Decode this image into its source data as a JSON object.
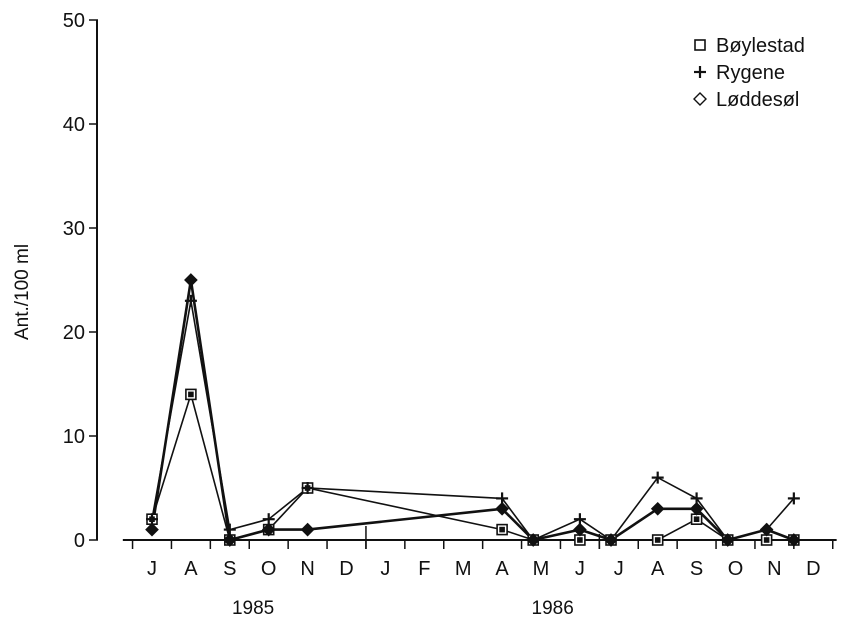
{
  "chart_data": {
    "type": "line",
    "ylabel": "Ant./100 ml",
    "ylim": [
      0,
      50
    ],
    "yticks": [
      "0",
      "10",
      "20",
      "30",
      "40",
      "50"
    ],
    "month_labels": [
      "J",
      "A",
      "S",
      "O",
      "N",
      "D",
      "J",
      "F",
      "M",
      "A",
      "M",
      "J",
      "J",
      "A",
      "S",
      "O",
      "N",
      "D"
    ],
    "year_labels": [
      {
        "label": "1985",
        "month": 2.6
      },
      {
        "label": "1986",
        "month": 10.3
      }
    ],
    "x_axis_start_month": -0.75,
    "x_axis_end_month": 17.6,
    "grid": false,
    "legend_position": "top-right",
    "series": [
      {
        "name": "Bøylestad",
        "marker": "square",
        "x": [
          0.0,
          1.0,
          2.0,
          3.0,
          4.0,
          9.0,
          9.8,
          11.0,
          11.8,
          13.0,
          14.0,
          14.8,
          15.8,
          16.5
        ],
        "values": [
          2,
          14,
          0,
          1,
          5,
          1,
          0,
          0,
          0,
          0,
          2,
          0,
          0,
          0
        ]
      },
      {
        "name": "Rygene",
        "marker": "plus",
        "x": [
          0.0,
          1.0,
          2.0,
          3.0,
          4.0,
          9.0,
          9.8,
          11.0,
          11.8,
          13.0,
          14.0,
          14.8,
          15.8,
          16.5
        ],
        "values": [
          2,
          23,
          1,
          2,
          5,
          4,
          0,
          2,
          0,
          6,
          4,
          0,
          1,
          4
        ]
      },
      {
        "name": "Løddesøl",
        "marker": "diamond",
        "x": [
          0.0,
          1.0,
          2.0,
          3.0,
          4.0,
          9.0,
          9.8,
          11.0,
          11.8,
          13.0,
          14.0,
          14.8,
          15.8,
          16.5
        ],
        "values": [
          1,
          25,
          0,
          1,
          1,
          3,
          0,
          1,
          0,
          3,
          3,
          0,
          1,
          0
        ]
      }
    ]
  }
}
